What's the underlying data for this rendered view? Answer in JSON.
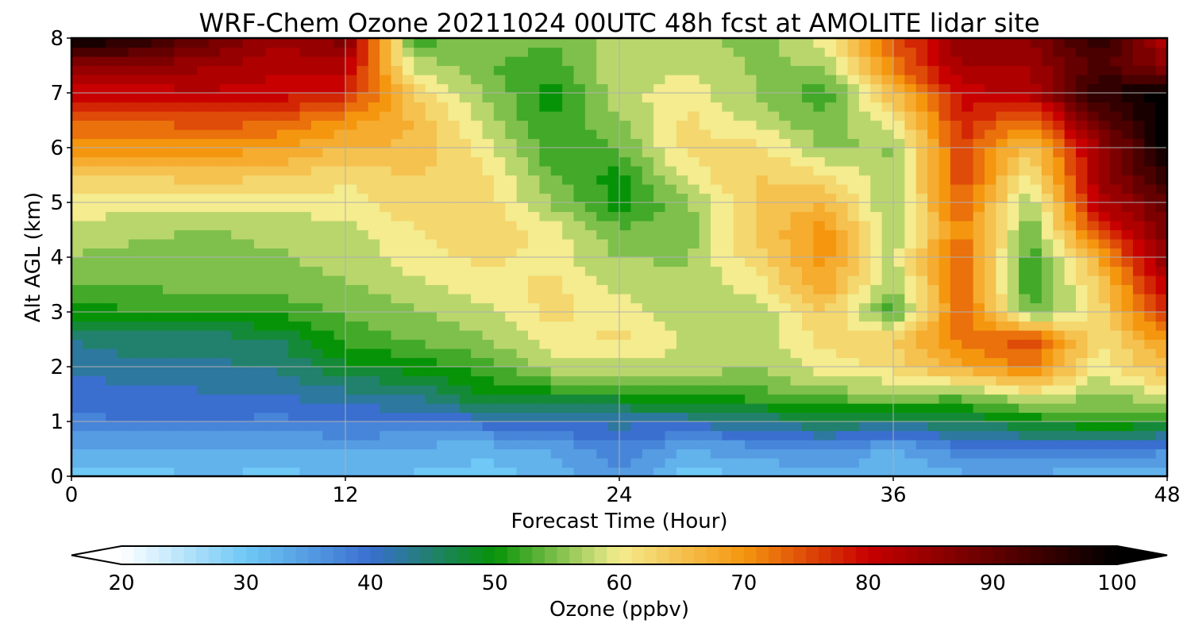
{
  "chart_data": {
    "type": "heatmap",
    "title": "WRF-Chem Ozone  20211024 00UTC 48h fcst at AMOLITE lidar site",
    "xlabel": "Forecast Time (Hour)",
    "ylabel": "Alt AGL (km)",
    "xlim": [
      0,
      48
    ],
    "ylim": [
      0,
      8
    ],
    "x_ticks": [
      0,
      12,
      24,
      36,
      48
    ],
    "y_ticks": [
      0,
      1,
      2,
      3,
      4,
      5,
      6,
      7,
      8
    ],
    "grid": true,
    "x": [
      0,
      3,
      6,
      9,
      12,
      15,
      18,
      21,
      24,
      27,
      30,
      33,
      36,
      39,
      42,
      45,
      48
    ],
    "y": [
      0,
      0.5,
      1,
      1.5,
      2,
      2.5,
      3,
      3.5,
      4,
      4.5,
      5,
      5.5,
      6,
      6.5,
      7,
      7.5,
      8
    ],
    "z": [
      [
        30,
        30,
        32,
        30,
        32,
        31,
        30,
        32,
        36,
        30,
        31,
        33,
        32,
        33,
        33,
        32,
        31
      ],
      [
        34,
        33,
        33,
        33,
        34,
        33,
        32,
        34,
        38,
        34,
        35,
        37,
        33,
        38,
        39,
        38,
        37
      ],
      [
        38,
        39,
        39,
        38,
        39,
        39,
        40,
        42,
        42,
        42,
        44,
        46,
        45,
        46,
        49,
        52,
        50
      ],
      [
        40,
        40,
        41,
        41,
        43,
        44,
        49,
        50,
        50,
        52,
        53,
        55,
        56,
        55,
        60,
        56,
        59
      ],
      [
        42,
        43,
        43,
        44,
        48,
        50,
        52,
        58,
        58,
        58,
        56,
        60,
        62,
        68,
        72,
        60,
        66
      ],
      [
        44,
        45,
        45,
        46,
        52,
        54,
        56,
        60,
        62,
        58,
        57,
        62,
        64,
        72,
        76,
        61,
        70
      ],
      [
        50,
        51,
        51,
        52,
        54,
        56,
        58,
        62,
        60,
        57,
        57,
        64,
        52,
        74,
        54,
        62,
        78
      ],
      [
        54,
        54,
        55,
        55,
        56,
        58,
        60,
        62,
        58,
        57,
        60,
        68,
        56,
        74,
        51,
        64,
        82
      ],
      [
        56,
        55,
        55,
        56,
        57,
        60,
        62,
        60,
        56,
        56,
        63,
        70,
        58,
        74,
        52,
        68,
        86
      ],
      [
        58,
        57,
        56,
        57,
        58,
        61,
        64,
        60,
        54,
        55,
        64,
        70,
        56,
        72,
        54,
        76,
        88
      ],
      [
        60,
        60,
        60,
        60,
        60,
        63,
        63,
        56,
        50,
        56,
        64,
        66,
        56,
        74,
        56,
        82,
        90
      ],
      [
        64,
        64,
        65,
        64,
        62,
        64,
        62,
        54,
        50,
        60,
        64,
        62,
        56,
        76,
        60,
        84,
        96
      ],
      [
        70,
        70,
        70,
        69,
        66,
        66,
        60,
        52,
        54,
        62,
        62,
        56,
        56,
        76,
        64,
        84,
        100
      ],
      [
        74,
        74,
        75,
        74,
        70,
        66,
        58,
        51,
        56,
        62,
        58,
        54,
        60,
        78,
        72,
        90,
        100
      ],
      [
        80,
        80,
        81,
        80,
        78,
        64,
        56,
        50,
        58,
        60,
        56,
        52,
        66,
        80,
        82,
        96,
        100
      ],
      [
        86,
        86,
        84,
        82,
        82,
        58,
        54,
        52,
        58,
        58,
        56,
        56,
        72,
        84,
        84,
        92,
        86
      ],
      [
        100,
        96,
        90,
        84,
        88,
        52,
        56,
        54,
        58,
        58,
        54,
        60,
        74,
        86,
        86,
        96,
        82
      ]
    ],
    "colorbar": {
      "label": "Ozone  (ppbv)",
      "ticks": [
        20,
        30,
        40,
        50,
        60,
        70,
        80,
        90,
        100
      ],
      "range": [
        20,
        100
      ],
      "extend": "both",
      "orientation": "horizontal",
      "colors": [
        "#ffffff",
        "#6fc8f5",
        "#3a6fd0",
        "#079307",
        "#f4ec8e",
        "#f5960f",
        "#c80000",
        "#000000"
      ],
      "color_stops": [
        20,
        30,
        40,
        50,
        60,
        70,
        80,
        100
      ]
    }
  }
}
